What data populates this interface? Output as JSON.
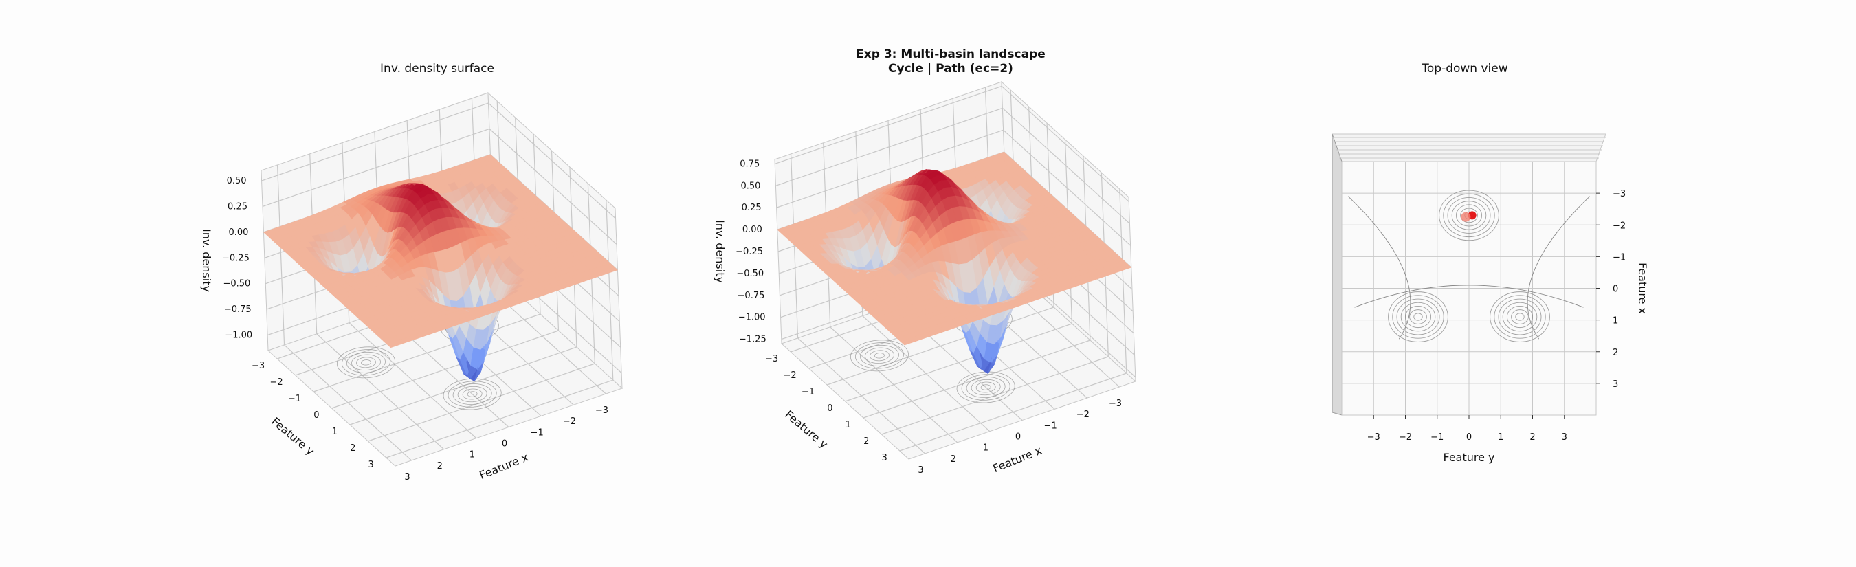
{
  "figure": {
    "suptitle_line1": "Exp 3: Multi-basin landscape",
    "suptitle_line2": "Cycle | Path (ec=2)"
  },
  "colors": {
    "colormap": "coolwarm",
    "cold": "#3b4cc0",
    "neutral": "#dddddd",
    "warm": "#b40426",
    "plane": "#f2b49b",
    "contour": "#888888",
    "grid": "#c8c8c8",
    "marker": "#e31a1c"
  },
  "chart_data": [
    {
      "type": "surface3d",
      "title": "Inv. density surface",
      "xlabel": "Feature x",
      "ylabel": "Feature y",
      "zlabel": "Inv. density",
      "xlim": [
        -3.5,
        3.5
      ],
      "ylim": [
        -3.5,
        3.5
      ],
      "zlim": [
        -1.15,
        0.6
      ],
      "x_ticks": [
        "3",
        "2",
        "1",
        "0",
        "−1",
        "−2",
        "−3"
      ],
      "y_ticks": [
        "−3",
        "−2",
        "−1",
        "0",
        "1",
        "2",
        "3"
      ],
      "z_ticks": [
        "0.50",
        "0.25",
        "0.00",
        "−0.25",
        "−0.50",
        "−0.75",
        "−1.00"
      ],
      "plane_level": 0.0,
      "basins": [
        {
          "x": 0.0,
          "y": 1.5,
          "depth": -1.08,
          "width": 0.55
        },
        {
          "x": -1.6,
          "y": -1.5,
          "depth": -0.8,
          "width": 0.55
        },
        {
          "x": 1.6,
          "y": -1.5,
          "depth": -0.7,
          "width": 0.55
        }
      ],
      "ridge": {
        "x": 0.0,
        "y": -1.0,
        "height": 0.48,
        "width": 0.9
      },
      "grid": true
    },
    {
      "type": "surface3d",
      "title": "",
      "xlabel": "Feature x",
      "ylabel": "Feature y",
      "zlabel": "Inv. density",
      "xlim": [
        -3.5,
        3.5
      ],
      "ylim": [
        -3.5,
        3.5
      ],
      "zlim": [
        -1.3,
        0.8
      ],
      "x_ticks": [
        "3",
        "2",
        "1",
        "0",
        "−1",
        "−2",
        "−3"
      ],
      "y_ticks": [
        "−3",
        "−2",
        "−1",
        "0",
        "1",
        "2",
        "3"
      ],
      "z_ticks": [
        "0.75",
        "0.50",
        "0.25",
        "0.00",
        "−0.25",
        "−0.50",
        "−0.75",
        "−1.00",
        "−1.25"
      ],
      "plane_level": 0.0,
      "basins": [
        {
          "x": 0.0,
          "y": 1.5,
          "depth": -1.22,
          "width": 0.55
        },
        {
          "x": -1.6,
          "y": -1.5,
          "depth": -0.9,
          "width": 0.55
        },
        {
          "x": 1.6,
          "y": -1.5,
          "depth": -0.8,
          "width": 0.55
        }
      ],
      "ridge": {
        "x": 0.0,
        "y": -1.0,
        "height": 0.7,
        "width": 0.9
      },
      "grid": true
    },
    {
      "type": "contour",
      "title": "Top-down view",
      "xlabel": "Feature y",
      "ylabel": "Feature x",
      "xlim": [
        -4,
        4
      ],
      "ylim": [
        -4,
        4
      ],
      "x_ticks": [
        "−3",
        "−2",
        "−1",
        "0",
        "1",
        "2",
        "3"
      ],
      "y_ticks": [
        "−3",
        "−2",
        "−1",
        "0",
        "1",
        "2",
        "3"
      ],
      "contour_centers": [
        {
          "y": 0.0,
          "x": -2.3
        },
        {
          "y": -1.6,
          "x": 0.9
        },
        {
          "y": 1.6,
          "x": 0.9
        }
      ],
      "path_points": [
        {
          "y": 0.1,
          "x": -2.3
        },
        {
          "y": -0.1,
          "x": -2.25
        }
      ],
      "grid": true
    }
  ]
}
